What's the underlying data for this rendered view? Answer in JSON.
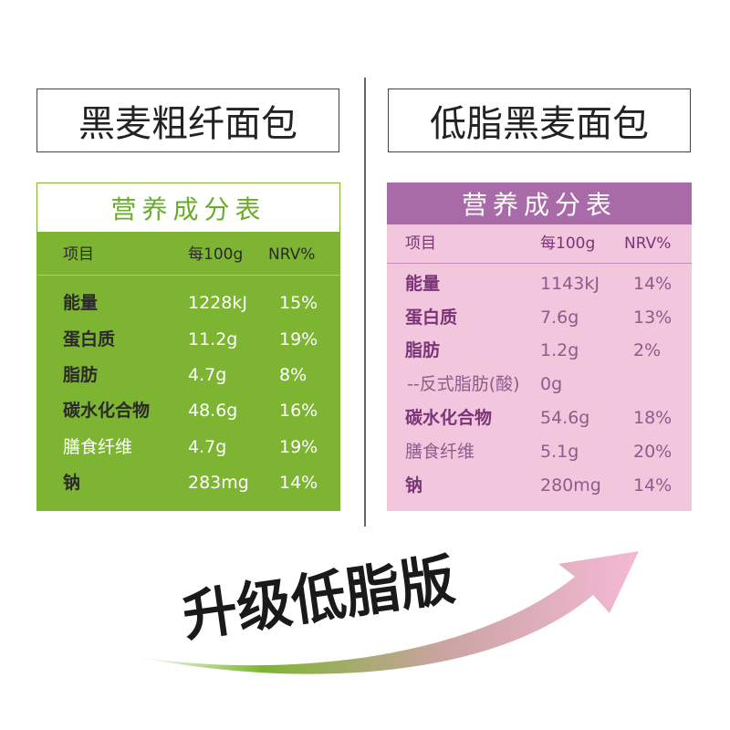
{
  "left": {
    "product": "黑麦粗纤面包",
    "table_title": "营养成分表",
    "header": [
      "项目",
      "每100g",
      "NRV%"
    ],
    "rows": [
      [
        "能量",
        "1228kJ",
        "15%"
      ],
      [
        "蛋白质",
        "11.2g",
        "19%"
      ],
      [
        "脂肪",
        "4.7g",
        "8%"
      ],
      [
        "碳水化合物",
        "48.6g",
        "16%"
      ],
      [
        "膳食纤维",
        "4.7g",
        "19%"
      ],
      [
        "钠",
        "283mg",
        "14%"
      ]
    ]
  },
  "right": {
    "product": "低脂黑麦面包",
    "table_title": "营养成分表",
    "header": [
      "项目",
      "每100g",
      "NRV%"
    ],
    "rows": [
      [
        "能量",
        "1143kJ",
        "14%"
      ],
      [
        "蛋白质",
        "7.6g",
        "13%"
      ],
      [
        "脂肪",
        "1.2g",
        "2%"
      ],
      [
        "--反式脂肪(酸)",
        "0g"
      ],
      [
        "碳水化合物",
        "54.6g",
        "18%"
      ],
      [
        "膳食纤维",
        "5.1g",
        "20%"
      ],
      [
        "钠",
        "280mg",
        "14%"
      ]
    ]
  },
  "banner": "升级低脂版"
}
